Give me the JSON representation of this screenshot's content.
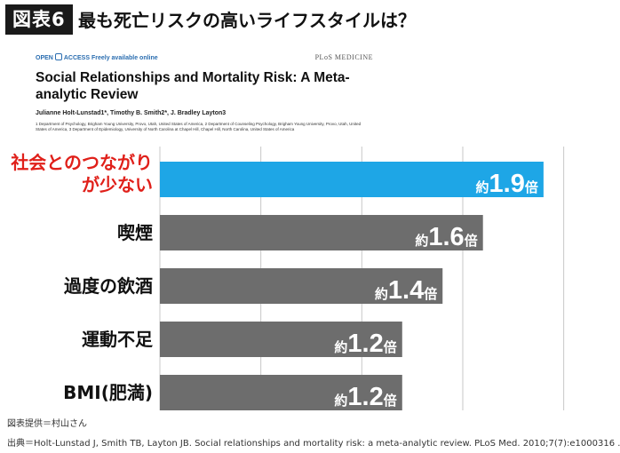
{
  "header": {
    "badge": "図表6",
    "title": "最も死亡リスクの高いライフスタイルは？"
  },
  "paper": {
    "oa_prefix": "OPEN",
    "oa_text": "ACCESS Freely available online",
    "journal": "PLoS MEDICINE",
    "title": "Social Relationships and Mortality Risk: A Meta-analytic Review",
    "authors": "Julianne Holt-Lunstad1*, Timothy B. Smith2*, J. Bradley Layton3",
    "affiliations": "1 Department of Psychology, Brigham Young University, Provo, Utah, United States of America, 2 Department of Counseling Psychology, Brigham Young University, Provo, Utah, United States of America, 3 Department of Epidemiology, University of North Carolina at Chapel Hill, Chapel Hill, North Carolina, United States of America"
  },
  "chart_data": {
    "type": "bar",
    "orientation": "horizontal",
    "categories": [
      [
        "社会とのつながり",
        "が少ない"
      ],
      [
        "喫煙"
      ],
      [
        "過度の飲酒"
      ],
      [
        "運動不足"
      ],
      [
        "BMI(肥満)"
      ]
    ],
    "values": [
      1.9,
      1.6,
      1.4,
      1.2,
      1.2
    ],
    "label_prefix": "約",
    "label_suffix": "倍",
    "highlight_index": 0,
    "xlim": [
      0,
      2.05
    ],
    "grid": true
  },
  "colors": {
    "highlight_bar": "#1ea6e6",
    "bar": "#6d6d6d",
    "highlight_label": "#e0201a",
    "label": "#111111",
    "grid": "#c8c8c8"
  },
  "footer": {
    "credit": "図表提供＝村山さん",
    "source": "出典＝Holt-Lunstad J, Smith TB, Layton JB. Social relationships and mortality risk: a meta-analytic review. PLoS Med. 2010;7(7):e1000316 ."
  }
}
